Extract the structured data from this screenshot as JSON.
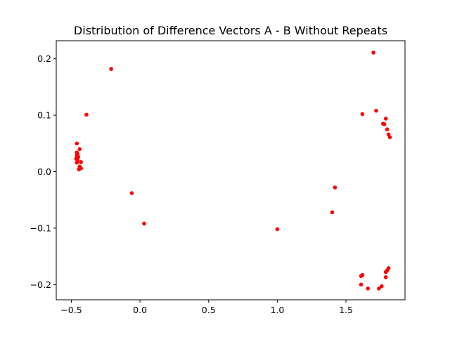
{
  "chart_data": {
    "type": "scatter",
    "title": "Distribution of Difference Vectors A - B Without Repeats",
    "xlabel": "",
    "ylabel": "",
    "xlim": [
      -0.61,
      1.93
    ],
    "ylim": [
      -0.227,
      0.232
    ],
    "xticks": [
      -0.5,
      0.0,
      0.5,
      1.0,
      1.5
    ],
    "xtick_labels": [
      "−0.5",
      "0.0",
      "0.5",
      "1.0",
      "1.5"
    ],
    "yticks": [
      -0.2,
      -0.1,
      0.0,
      0.1,
      0.2
    ],
    "ytick_labels": [
      "−0.2",
      "−0.1",
      "0.0",
      "0.1",
      "0.2"
    ],
    "grid": false,
    "marker_color": "#ff0000",
    "points": [
      {
        "x": -0.46,
        "y": 0.05
      },
      {
        "x": -0.44,
        "y": 0.04
      },
      {
        "x": -0.46,
        "y": 0.034
      },
      {
        "x": -0.455,
        "y": 0.031
      },
      {
        "x": -0.46,
        "y": 0.029
      },
      {
        "x": -0.45,
        "y": 0.026
      },
      {
        "x": -0.465,
        "y": 0.023
      },
      {
        "x": -0.455,
        "y": 0.02
      },
      {
        "x": -0.46,
        "y": 0.016
      },
      {
        "x": -0.43,
        "y": 0.017
      },
      {
        "x": -0.44,
        "y": 0.009
      },
      {
        "x": -0.43,
        "y": 0.006
      },
      {
        "x": -0.445,
        "y": 0.004
      },
      {
        "x": -0.39,
        "y": 0.101
      },
      {
        "x": -0.21,
        "y": 0.182
      },
      {
        "x": -0.06,
        "y": -0.038
      },
      {
        "x": 0.03,
        "y": -0.092
      },
      {
        "x": 1.0,
        "y": -0.102
      },
      {
        "x": 1.4,
        "y": -0.072
      },
      {
        "x": 1.42,
        "y": -0.028
      },
      {
        "x": 1.7,
        "y": 0.211
      },
      {
        "x": 1.72,
        "y": 0.108
      },
      {
        "x": 1.62,
        "y": 0.102
      },
      {
        "x": 1.79,
        "y": 0.094
      },
      {
        "x": 1.78,
        "y": 0.084
      },
      {
        "x": 1.77,
        "y": 0.085
      },
      {
        "x": 1.8,
        "y": 0.075
      },
      {
        "x": 1.81,
        "y": 0.066
      },
      {
        "x": 1.82,
        "y": 0.061
      },
      {
        "x": 1.61,
        "y": -0.185
      },
      {
        "x": 1.62,
        "y": -0.183
      },
      {
        "x": 1.61,
        "y": -0.2
      },
      {
        "x": 1.66,
        "y": -0.207
      },
      {
        "x": 1.74,
        "y": -0.207
      },
      {
        "x": 1.76,
        "y": -0.203
      },
      {
        "x": 1.79,
        "y": -0.187
      },
      {
        "x": 1.79,
        "y": -0.178
      },
      {
        "x": 1.8,
        "y": -0.175
      },
      {
        "x": 1.81,
        "y": -0.171
      }
    ]
  }
}
